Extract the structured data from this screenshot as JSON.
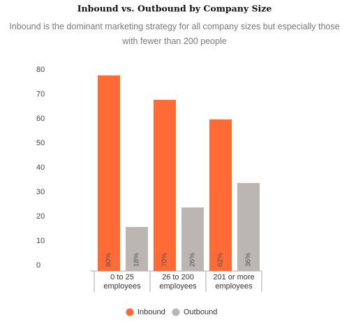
{
  "chart_data": {
    "type": "bar",
    "title": "Inbound vs. Outbound by Company Size",
    "subtitle": "Inbound is the dominant marketing strategy for all company sizes but especially those with fewer than 200 people",
    "categories": [
      "0 to 25 employees",
      "26 to 200 employees",
      "201 or more employees"
    ],
    "series": [
      {
        "name": "Inbound",
        "color": "#ff6a35",
        "values": [
          80,
          70,
          62
        ],
        "value_labels": [
          "80%",
          "70%",
          "62%"
        ]
      },
      {
        "name": "Outbound",
        "color": "#bbb6b3",
        "values": [
          18,
          26,
          36
        ],
        "value_labels": [
          "18%",
          "26%",
          "36%"
        ]
      }
    ],
    "ylim": [
      0,
      80
    ],
    "yticks": [
      0,
      10,
      20,
      30,
      40,
      50,
      60,
      70,
      80
    ],
    "grid": false,
    "legend": "bottom"
  }
}
